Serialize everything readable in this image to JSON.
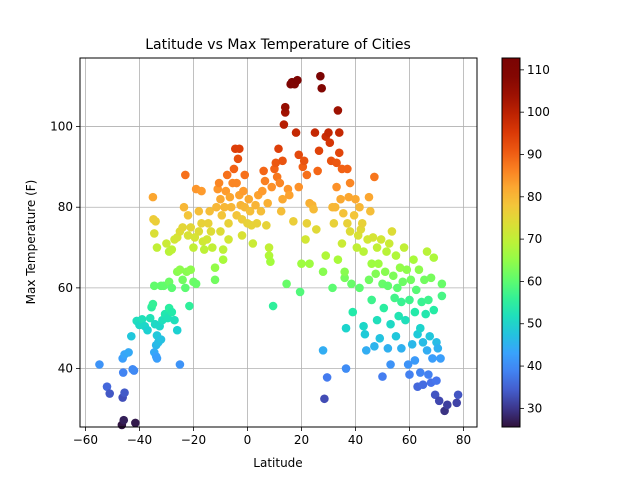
{
  "chart_data": {
    "type": "scatter",
    "title": "Latitude vs Max Temperature of Cities",
    "xlabel": "Latitude",
    "ylabel": "Max Temperature (F)",
    "xlim": [
      -62,
      85
    ],
    "ylim": [
      25.5,
      117
    ],
    "xticks": [
      -60,
      -40,
      -20,
      0,
      20,
      40,
      60,
      80
    ],
    "yticks": [
      40,
      60,
      80,
      100
    ],
    "grid": true,
    "colorbar": {
      "colormap": "turbo",
      "vmin": 25.6,
      "vmax": 112.8,
      "ticks": [
        30,
        40,
        50,
        60,
        70,
        80,
        90,
        100,
        110
      ]
    },
    "points": [
      [
        -54.8,
        41.0
      ],
      [
        -52.0,
        35.5
      ],
      [
        -51.0,
        33.8
      ],
      [
        -46.5,
        26.0
      ],
      [
        -45.8,
        27.2
      ],
      [
        -46.2,
        32.8
      ],
      [
        -45.5,
        34.0
      ],
      [
        -46.0,
        39.0
      ],
      [
        -46.2,
        42.5
      ],
      [
        -45.5,
        43.5
      ],
      [
        -44.0,
        44.0
      ],
      [
        -43.0,
        48.0
      ],
      [
        -42.0,
        39.5
      ],
      [
        -41.5,
        26.5
      ],
      [
        -42.5,
        39.8
      ],
      [
        -41.0,
        51.8
      ],
      [
        -40.0,
        50.8
      ],
      [
        -39.0,
        52.2
      ],
      [
        -38.0,
        50.5
      ],
      [
        -37.0,
        49.5
      ],
      [
        -36.0,
        52.5
      ],
      [
        -35.5,
        55.2
      ],
      [
        -35.0,
        56.0
      ],
      [
        -34.2,
        51.0
      ],
      [
        -34.5,
        44.0
      ],
      [
        -33.8,
        43.0
      ],
      [
        -33.5,
        42.5
      ],
      [
        -33.8,
        45.8
      ],
      [
        -33.0,
        46.5
      ],
      [
        -33.5,
        48.2
      ],
      [
        -32.0,
        47.2
      ],
      [
        -32.5,
        50.5
      ],
      [
        -31.5,
        52.0
      ],
      [
        -30.5,
        53.5
      ],
      [
        -29.5,
        52.5
      ],
      [
        -29.0,
        55.0
      ],
      [
        -28.0,
        54.0
      ],
      [
        -27.0,
        52.0
      ],
      [
        -26.0,
        49.5
      ],
      [
        -25.0,
        41.0
      ],
      [
        -34.5,
        60.5
      ],
      [
        -32.0,
        60.5
      ],
      [
        -31.0,
        60.5
      ],
      [
        -29.0,
        61.5
      ],
      [
        -28.0,
        60.0
      ],
      [
        -26.0,
        64.0
      ],
      [
        -25.0,
        64.5
      ],
      [
        -24.0,
        62.0
      ],
      [
        -23.0,
        60.0
      ],
      [
        -22.5,
        64.0
      ],
      [
        -21.0,
        64.5
      ],
      [
        -21.5,
        55.5
      ],
      [
        -20.0,
        61.5
      ],
      [
        -19.0,
        61.0
      ],
      [
        -35.0,
        82.5
      ],
      [
        -34.8,
        77.0
      ],
      [
        -34.0,
        76.5
      ],
      [
        -34.5,
        73.5
      ],
      [
        -33.5,
        70.0
      ],
      [
        -30.0,
        71.0
      ],
      [
        -29.0,
        69.0
      ],
      [
        -28.0,
        69.5
      ],
      [
        -27.0,
        72.0
      ],
      [
        -26.0,
        72.5
      ],
      [
        -25.0,
        74.0
      ],
      [
        -24.0,
        75.0
      ],
      [
        -23.5,
        80.0
      ],
      [
        -23.0,
        88.0
      ],
      [
        -22.0,
        78.0
      ],
      [
        -22.0,
        73.0
      ],
      [
        -21.0,
        75.0
      ],
      [
        -20.0,
        70.0
      ],
      [
        -19.5,
        72.5
      ],
      [
        -19.0,
        84.5
      ],
      [
        -18.0,
        79.0
      ],
      [
        -18.0,
        74.0
      ],
      [
        -17.0,
        76.0
      ],
      [
        -17.0,
        84.0
      ],
      [
        -16.5,
        71.5
      ],
      [
        -16.0,
        69.5
      ],
      [
        -15.0,
        72.0
      ],
      [
        -14.5,
        76.0
      ],
      [
        -14.0,
        79.0
      ],
      [
        -13.5,
        74.0
      ],
      [
        -13.0,
        70.0
      ],
      [
        -12.0,
        65.0
      ],
      [
        -12.0,
        62.0
      ],
      [
        -11.5,
        80.0
      ],
      [
        -11.0,
        84.5
      ],
      [
        -10.5,
        86.0
      ],
      [
        -10.0,
        82.0
      ],
      [
        -10.0,
        74.0
      ],
      [
        -9.5,
        78.0
      ],
      [
        -9.0,
        69.5
      ],
      [
        -9.0,
        67.0
      ],
      [
        -8.5,
        80.0
      ],
      [
        -8.0,
        84.0
      ],
      [
        -7.5,
        88.0
      ],
      [
        -7.0,
        76.0
      ],
      [
        -7.0,
        72.0
      ],
      [
        -6.5,
        82.5
      ],
      [
        -6.0,
        80.0
      ],
      [
        -5.5,
        86.0
      ],
      [
        -5.0,
        89.5
      ],
      [
        -4.5,
        94.5
      ],
      [
        -4.0,
        86.0
      ],
      [
        -4.0,
        78.0
      ],
      [
        -3.5,
        92.0
      ],
      [
        -3.0,
        83.0
      ],
      [
        -3.0,
        94.5
      ],
      [
        -2.5,
        80.5
      ],
      [
        -2.0,
        77.0
      ],
      [
        -2.0,
        73.0
      ],
      [
        -1.5,
        84.0
      ],
      [
        -1.0,
        88.0
      ],
      [
        -1.0,
        80.0
      ],
      [
        0.0,
        76.0
      ],
      [
        0.5,
        82.0
      ],
      [
        1.0,
        79.0
      ],
      [
        1.5,
        75.5
      ],
      [
        2.0,
        71.0
      ],
      [
        3.0,
        80.5
      ],
      [
        3.5,
        76.0
      ],
      [
        4.0,
        83.0
      ],
      [
        5.0,
        79.0
      ],
      [
        5.5,
        84.0
      ],
      [
        6.0,
        89.0
      ],
      [
        6.5,
        86.5
      ],
      [
        7.0,
        75.5
      ],
      [
        7.5,
        81.0
      ],
      [
        8.0,
        68.0
      ],
      [
        8.0,
        70.0
      ],
      [
        8.5,
        66.5
      ],
      [
        9.0,
        85.0
      ],
      [
        9.5,
        55.5
      ],
      [
        10.0,
        89.5
      ],
      [
        10.5,
        91.0
      ],
      [
        11.0,
        87.5
      ],
      [
        11.5,
        94.5
      ],
      [
        12.0,
        86.0
      ],
      [
        12.5,
        79.0
      ],
      [
        13.0,
        82.0
      ],
      [
        13.0,
        91.5
      ],
      [
        13.5,
        100.5
      ],
      [
        14.0,
        103.5
      ],
      [
        14.0,
        104.8
      ],
      [
        14.5,
        61.0
      ],
      [
        15.0,
        84.5
      ],
      [
        15.5,
        83.0
      ],
      [
        16.0,
        110.5
      ],
      [
        16.5,
        111.0
      ],
      [
        17.0,
        76.5
      ],
      [
        17.5,
        110.5
      ],
      [
        18.0,
        98.5
      ],
      [
        18.5,
        111.5
      ],
      [
        19.0,
        93.0
      ],
      [
        19.0,
        85.0
      ],
      [
        19.5,
        59.0
      ],
      [
        20.0,
        66.0
      ],
      [
        20.5,
        90.0
      ],
      [
        21.0,
        91.5
      ],
      [
        21.5,
        72.0
      ],
      [
        22.0,
        76.0
      ],
      [
        22.0,
        88.0
      ],
      [
        23.0,
        81.0
      ],
      [
        23.0,
        66.0
      ],
      [
        24.0,
        80.5
      ],
      [
        24.5,
        79.5
      ],
      [
        25.0,
        98.5
      ],
      [
        25.5,
        74.5
      ],
      [
        26.0,
        89.0
      ],
      [
        26.5,
        94.0
      ],
      [
        27.0,
        112.5
      ],
      [
        27.5,
        109.5
      ],
      [
        28.0,
        64.0
      ],
      [
        28.0,
        44.5
      ],
      [
        28.5,
        32.5
      ],
      [
        29.0,
        97.5
      ],
      [
        29.0,
        68.0
      ],
      [
        29.5,
        37.8
      ],
      [
        30.0,
        98.5
      ],
      [
        30.5,
        96.0
      ],
      [
        31.0,
        91.5
      ],
      [
        31.5,
        80.0
      ],
      [
        31.5,
        60.0
      ],
      [
        32.0,
        76.0
      ],
      [
        32.5,
        80.0
      ],
      [
        33.0,
        85.0
      ],
      [
        33.0,
        91.0
      ],
      [
        33.5,
        67.0
      ],
      [
        33.5,
        104.0
      ],
      [
        34.0,
        98.5
      ],
      [
        34.0,
        93.5
      ],
      [
        34.5,
        82.0
      ],
      [
        35.0,
        89.5
      ],
      [
        35.0,
        71.0
      ],
      [
        35.5,
        78.5
      ],
      [
        36.0,
        62.5
      ],
      [
        36.0,
        64.0
      ],
      [
        36.5,
        50.0
      ],
      [
        36.5,
        40.0
      ],
      [
        37.0,
        76.0
      ],
      [
        37.0,
        89.5
      ],
      [
        37.5,
        82.5
      ],
      [
        38.0,
        74.0
      ],
      [
        38.0,
        86.0
      ],
      [
        38.5,
        61.0
      ],
      [
        39.0,
        54.0
      ],
      [
        39.5,
        78.0
      ],
      [
        40.0,
        82.0
      ],
      [
        40.5,
        70.0
      ],
      [
        41.0,
        73.0
      ],
      [
        41.5,
        60.0
      ],
      [
        41.5,
        80.0
      ],
      [
        42.0,
        74.5
      ],
      [
        42.5,
        76.0
      ],
      [
        43.0,
        69.0
      ],
      [
        43.0,
        50.5
      ],
      [
        43.5,
        48.5
      ],
      [
        44.0,
        44.5
      ],
      [
        44.5,
        72.0
      ],
      [
        45.0,
        62.0
      ],
      [
        45.0,
        82.5
      ],
      [
        45.5,
        79.0
      ],
      [
        46.0,
        57.0
      ],
      [
        46.0,
        66.0
      ],
      [
        46.5,
        72.5
      ],
      [
        47.0,
        45.5
      ],
      [
        47.0,
        87.5
      ],
      [
        47.5,
        63.5
      ],
      [
        48.0,
        70.0
      ],
      [
        48.0,
        52.0
      ],
      [
        48.5,
        66.0
      ],
      [
        49.0,
        47.5
      ],
      [
        49.5,
        72.0
      ],
      [
        50.0,
        61.0
      ],
      [
        50.0,
        38.0
      ],
      [
        50.5,
        55.0
      ],
      [
        51.0,
        64.0
      ],
      [
        51.5,
        69.0
      ],
      [
        52.0,
        45.0
      ],
      [
        52.0,
        60.5
      ],
      [
        52.5,
        71.0
      ],
      [
        53.0,
        51.0
      ],
      [
        53.0,
        41.0
      ],
      [
        53.5,
        74.0
      ],
      [
        54.0,
        63.0
      ],
      [
        54.5,
        57.5
      ],
      [
        55.0,
        48.0
      ],
      [
        55.0,
        68.0
      ],
      [
        55.5,
        60.0
      ],
      [
        56.0,
        53.0
      ],
      [
        56.5,
        65.0
      ],
      [
        57.0,
        56.5
      ],
      [
        57.0,
        45.0
      ],
      [
        57.5,
        61.5
      ],
      [
        58.0,
        70.0
      ],
      [
        58.5,
        52.0
      ],
      [
        59.0,
        64.5
      ],
      [
        59.5,
        41.0
      ],
      [
        60.0,
        57.0
      ],
      [
        60.0,
        38.5
      ],
      [
        60.5,
        62.0
      ],
      [
        61.0,
        46.0
      ],
      [
        61.5,
        67.0
      ],
      [
        62.0,
        42.0
      ],
      [
        62.0,
        54.0
      ],
      [
        62.5,
        59.5
      ],
      [
        63.0,
        35.5
      ],
      [
        63.0,
        48.5
      ],
      [
        63.5,
        64.5
      ],
      [
        64.0,
        50.0
      ],
      [
        64.0,
        39.0
      ],
      [
        64.5,
        56.5
      ],
      [
        65.0,
        46.5
      ],
      [
        65.0,
        36.0
      ],
      [
        65.5,
        62.0
      ],
      [
        66.0,
        53.5
      ],
      [
        66.5,
        44.5
      ],
      [
        66.5,
        69.0
      ],
      [
        67.0,
        38.5
      ],
      [
        67.0,
        57.0
      ],
      [
        67.5,
        48.0
      ],
      [
        68.0,
        36.5
      ],
      [
        68.0,
        62.5
      ],
      [
        68.5,
        42.5
      ],
      [
        69.0,
        67.5
      ],
      [
        69.0,
        54.5
      ],
      [
        69.5,
        33.5
      ],
      [
        70.0,
        46.5
      ],
      [
        70.0,
        37.0
      ],
      [
        70.5,
        45.0
      ],
      [
        71.0,
        32.0
      ],
      [
        71.5,
        42.5
      ],
      [
        72.0,
        61.0
      ],
      [
        72.0,
        58.0
      ],
      [
        73.0,
        29.5
      ],
      [
        74.0,
        31.0
      ],
      [
        77.5,
        31.5
      ],
      [
        78.0,
        33.5
      ]
    ]
  }
}
